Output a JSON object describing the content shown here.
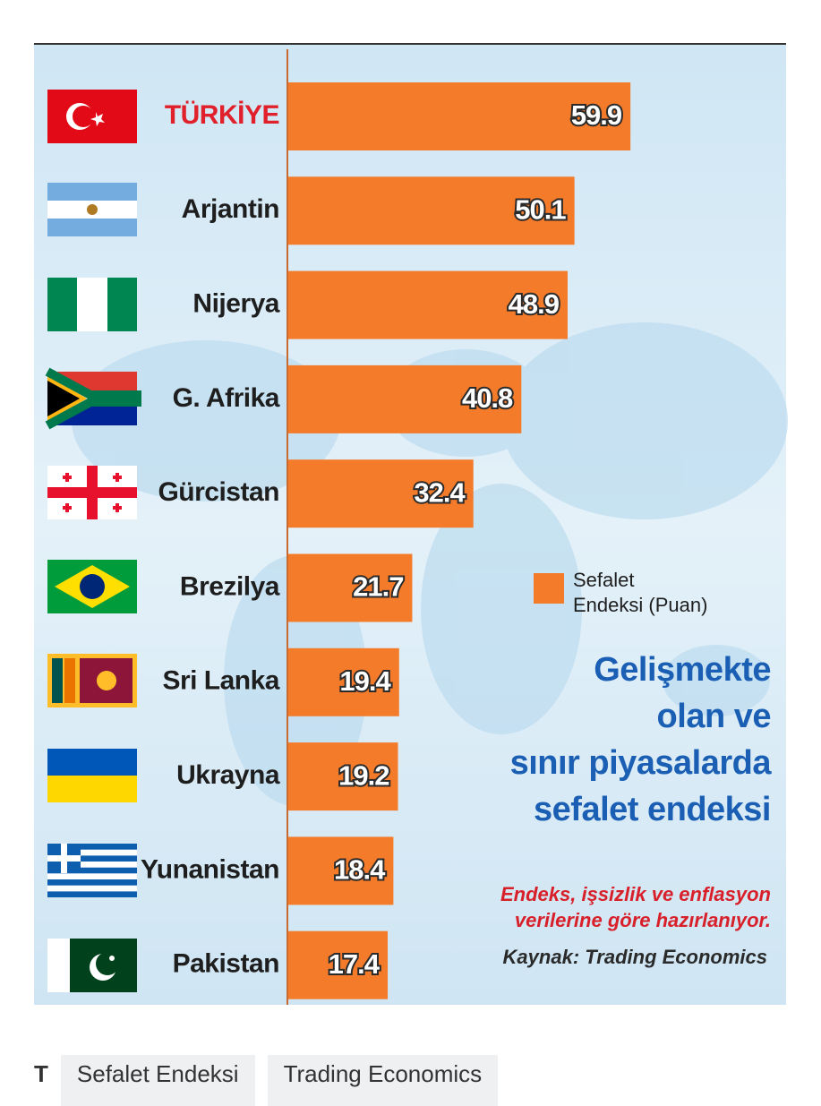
{
  "chart_data": {
    "type": "bar",
    "orientation": "horizontal",
    "categories": [
      "TÜRKİYE",
      "Arjantin",
      "Nijerya",
      "G. Afrika",
      "Gürcistan",
      "Brezilya",
      "Sri Lanka",
      "Ukrayna",
      "Yunanistan",
      "Pakistan"
    ],
    "series": [
      {
        "name": "Sefalet Endeksi (Puan)",
        "color": "#f47b2a",
        "values": [
          59.9,
          50.1,
          48.9,
          40.8,
          32.4,
          21.7,
          19.4,
          19.2,
          18.4,
          17.4
        ]
      }
    ],
    "title": [
      "Gelişmekte",
      "olan ve",
      "sınır piyasalarda",
      "sefalet endeksi"
    ],
    "notes": [
      "Endeks, işsizlik ve enflasyon",
      "verilerine göre hazırlanıyor."
    ],
    "source": "Kaynak: Trading Economics"
  },
  "footer": {
    "lead": "T",
    "tags": [
      "Sefalet Endeksi",
      "Trading Economics"
    ]
  }
}
